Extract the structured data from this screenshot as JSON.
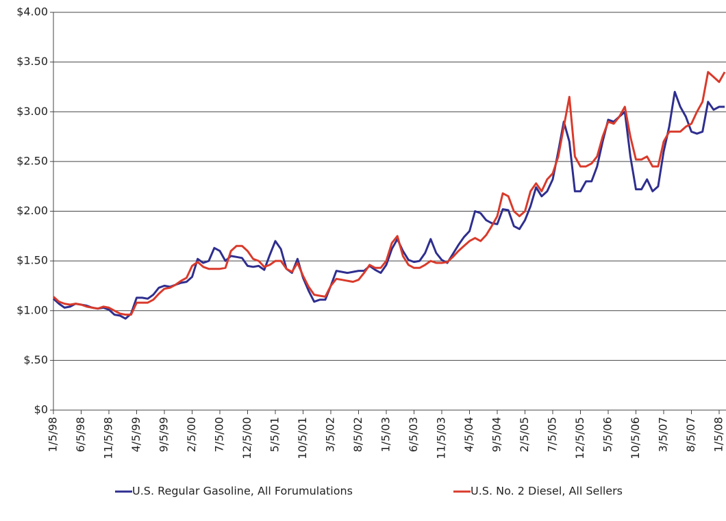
{
  "chart_data": {
    "type": "line",
    "categories": [
      "1/5/98",
      null,
      null,
      null,
      null,
      "6/5/98",
      null,
      null,
      null,
      null,
      "11/5/98",
      null,
      null,
      null,
      null,
      "4/5/99",
      null,
      null,
      null,
      null,
      "9/5/99",
      null,
      null,
      null,
      null,
      "2/5/00",
      null,
      null,
      null,
      null,
      "7/5/00",
      null,
      null,
      null,
      null,
      "12/5/00",
      null,
      null,
      null,
      null,
      "5/5/01",
      null,
      null,
      null,
      null,
      "10/5/01",
      null,
      null,
      null,
      null,
      "3/5/02",
      null,
      null,
      null,
      null,
      "8/5/02",
      null,
      null,
      null,
      null,
      "1/5/03",
      null,
      null,
      null,
      null,
      "6/5/03",
      null,
      null,
      null,
      null,
      "11/5/03",
      null,
      null,
      null,
      null,
      "4/5/04",
      null,
      null,
      null,
      null,
      "9/5/04",
      null,
      null,
      null,
      null,
      "2/5/05",
      null,
      null,
      null,
      null,
      "7/5/05",
      null,
      null,
      null,
      null,
      "12/5/05",
      null,
      null,
      null,
      null,
      "5/5/06",
      null,
      null,
      null,
      null,
      "10/5/06",
      null,
      null,
      null,
      null,
      "3/5/07",
      null,
      null,
      null,
      null,
      "8/5/07",
      null,
      null,
      null,
      null,
      "1/5/08",
      null
    ],
    "series": [
      {
        "name": "U.S. Regular Gasoline, All Forumulations",
        "color": "#2e2e8f",
        "values": [
          1.12,
          1.07,
          1.03,
          1.04,
          1.07,
          1.06,
          1.05,
          1.03,
          1.02,
          1.03,
          1.01,
          0.96,
          0.95,
          0.92,
          0.97,
          1.13,
          1.13,
          1.12,
          1.16,
          1.23,
          1.25,
          1.24,
          1.26,
          1.28,
          1.29,
          1.34,
          1.52,
          1.48,
          1.5,
          1.63,
          1.6,
          1.5,
          1.55,
          1.54,
          1.53,
          1.45,
          1.44,
          1.45,
          1.41,
          1.56,
          1.7,
          1.62,
          1.42,
          1.38,
          1.52,
          1.33,
          1.2,
          1.09,
          1.11,
          1.11,
          1.25,
          1.4,
          1.39,
          1.38,
          1.39,
          1.4,
          1.4,
          1.45,
          1.41,
          1.38,
          1.46,
          1.62,
          1.72,
          1.6,
          1.51,
          1.49,
          1.5,
          1.58,
          1.72,
          1.58,
          1.51,
          1.48,
          1.57,
          1.66,
          1.74,
          1.8,
          2.0,
          1.98,
          1.91,
          1.88,
          1.87,
          2.02,
          2.01,
          1.85,
          1.82,
          1.91,
          2.05,
          2.24,
          2.15,
          2.2,
          2.32,
          2.6,
          2.9,
          2.7,
          2.2,
          2.2,
          2.3,
          2.3,
          2.45,
          2.7,
          2.92,
          2.9,
          2.95,
          3.0,
          2.55,
          2.22,
          2.22,
          2.32,
          2.2,
          2.25,
          2.6,
          2.85,
          3.2,
          3.05,
          2.95,
          2.8,
          2.78,
          2.8,
          3.1,
          3.02,
          3.05,
          3.05
        ]
      },
      {
        "name": "U.S. No. 2 Diesel, All Sellers",
        "color": "#d93a2b",
        "values": [
          1.14,
          1.09,
          1.07,
          1.06,
          1.07,
          1.06,
          1.04,
          1.03,
          1.02,
          1.04,
          1.03,
          1.0,
          0.97,
          0.96,
          0.96,
          1.08,
          1.08,
          1.08,
          1.11,
          1.17,
          1.22,
          1.23,
          1.26,
          1.3,
          1.33,
          1.45,
          1.49,
          1.44,
          1.42,
          1.42,
          1.42,
          1.43,
          1.6,
          1.65,
          1.65,
          1.6,
          1.52,
          1.5,
          1.44,
          1.46,
          1.5,
          1.5,
          1.42,
          1.39,
          1.48,
          1.35,
          1.24,
          1.16,
          1.15,
          1.14,
          1.25,
          1.32,
          1.31,
          1.3,
          1.29,
          1.31,
          1.38,
          1.46,
          1.43,
          1.43,
          1.5,
          1.68,
          1.75,
          1.55,
          1.46,
          1.43,
          1.43,
          1.46,
          1.5,
          1.48,
          1.48,
          1.49,
          1.54,
          1.6,
          1.65,
          1.7,
          1.73,
          1.7,
          1.76,
          1.85,
          1.95,
          2.18,
          2.15,
          2.0,
          1.95,
          2.0,
          2.2,
          2.28,
          2.2,
          2.32,
          2.38,
          2.55,
          2.85,
          3.15,
          2.55,
          2.45,
          2.45,
          2.48,
          2.55,
          2.75,
          2.9,
          2.88,
          2.95,
          3.05,
          2.75,
          2.52,
          2.52,
          2.55,
          2.45,
          2.45,
          2.7,
          2.8,
          2.8,
          2.8,
          2.85,
          2.88,
          3.0,
          3.1,
          3.4,
          3.35,
          3.3,
          3.4
        ]
      }
    ],
    "ylim": [
      0,
      4
    ],
    "yticks": [
      {
        "value": 0,
        "label": "$0"
      },
      {
        "value": 0.5,
        "label": "$.50"
      },
      {
        "value": 1,
        "label": "$1.00"
      },
      {
        "value": 1.5,
        "label": "$1.50"
      },
      {
        "value": 2,
        "label": "$2.00"
      },
      {
        "value": 2.5,
        "label": "$2.50"
      },
      {
        "value": 3,
        "label": "$3.00"
      },
      {
        "value": 3.5,
        "label": "$3.50"
      },
      {
        "value": 4,
        "label": "$4.00"
      }
    ],
    "grid": true
  }
}
